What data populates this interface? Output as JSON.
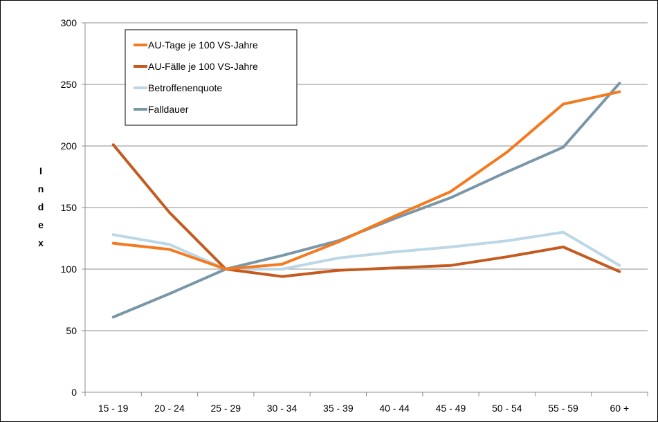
{
  "chart_data": {
    "type": "line",
    "title": "",
    "xlabel": "",
    "ylabel": "Index",
    "categories": [
      "15 - 19",
      "20 - 24",
      "25 - 29",
      "30 - 34",
      "35 - 39",
      "40 - 44",
      "45 - 49",
      "50 - 54",
      "55 - 59",
      "60 +"
    ],
    "ylim": [
      0,
      300
    ],
    "yticks": [
      0,
      50,
      100,
      150,
      200,
      250,
      300
    ],
    "grid": "horizontal",
    "legend_position": "top-left",
    "series": [
      {
        "name": "AU-Tage je 100 VS-Jahre",
        "color": "#f47a20",
        "values": [
          121,
          116,
          100,
          104,
          122,
          143,
          163,
          195,
          234,
          244
        ]
      },
      {
        "name": "AU-Fälle je 100 VS-Jahre",
        "color": "#c55a1f",
        "values": [
          201,
          146,
          100,
          94,
          99,
          101,
          103,
          110,
          118,
          98
        ]
      },
      {
        "name": "Betroffenenquote",
        "color": "#bcd7e6",
        "values": [
          128,
          120,
          100,
          100,
          109,
          114,
          118,
          123,
          130,
          103
        ]
      },
      {
        "name": "Falldauer",
        "color": "#7a97a8",
        "values": [
          61,
          80,
          100,
          111,
          123,
          141,
          158,
          179,
          199,
          251
        ]
      }
    ]
  }
}
